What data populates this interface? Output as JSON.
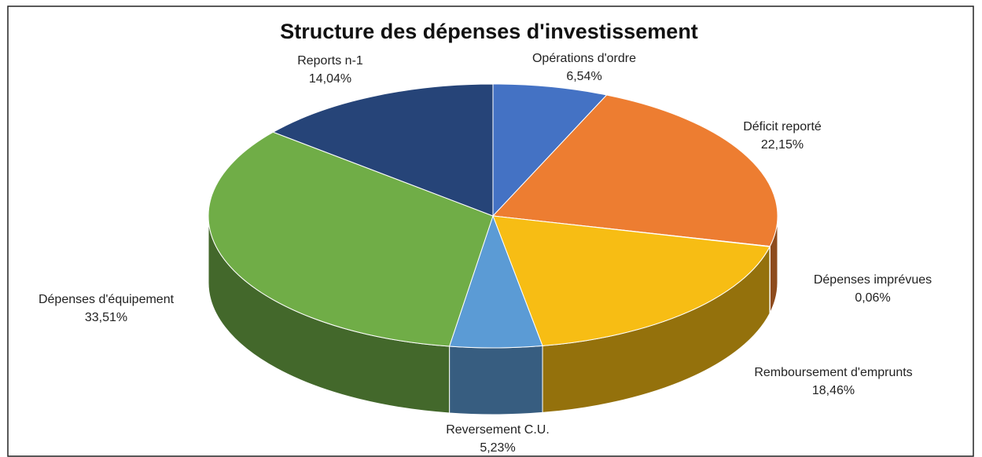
{
  "chart_data": {
    "type": "pie",
    "title": "Structure des dépenses d'investissement",
    "categories": [
      "Opérations d'ordre",
      "Déficit reporté",
      "Dépenses imprévues",
      "Remboursement d'emprunts",
      "Reversement C.U.",
      "Dépenses d'équipement",
      "Reports n-1"
    ],
    "values": [
      6.54,
      22.15,
      0.06,
      18.46,
      5.23,
      33.51,
      14.04
    ],
    "value_labels": [
      "6,54%",
      "22,15%",
      "0,06%",
      "18,46%",
      "5,23%",
      "33,51%",
      "14,04%"
    ],
    "colors": [
      "#4472c4",
      "#ed7d31",
      "#a5a5a5",
      "#f7bd14",
      "#5b9bd5",
      "#70ad47",
      "#264478"
    ]
  }
}
